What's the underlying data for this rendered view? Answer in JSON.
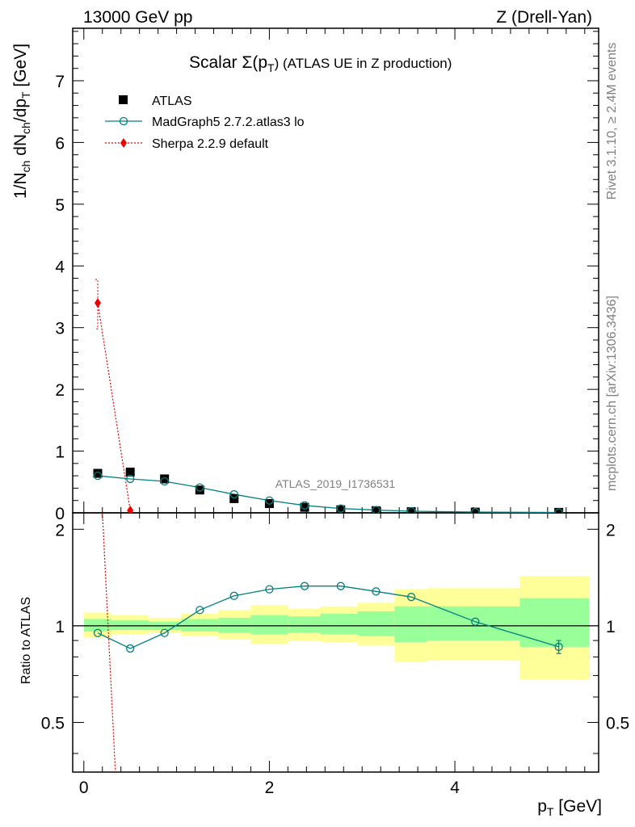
{
  "header": {
    "left": "13000 GeV pp",
    "right": "Z (Drell-Yan)"
  },
  "side": {
    "rivet": "Rivet 3.1.10, ≥ 2.4M events",
    "mcplots": "mcplots.cern.ch [arXiv:1306.3436]"
  },
  "watermark": "ATLAS_2019_I1736531",
  "title": {
    "main": "Scalar Σ(p",
    "sub": "T",
    "tail": ") (ATLAS UE in Z production)"
  },
  "axes": {
    "ylabel_top": "1/N_ch dN_ch/dp_T [GeV]",
    "ylabel_bottom": "Ratio to ATLAS",
    "xlabel": "p_T [GeV]"
  },
  "legend": [
    {
      "key": "atlas",
      "label": "ATLAS"
    },
    {
      "key": "madgraph",
      "label": "MadGraph5 2.7.2.atlas3 lo"
    },
    {
      "key": "sherpa",
      "label": "Sherpa 2.2.9 default"
    }
  ],
  "colors": {
    "madgraph": "#008080",
    "sherpa": "#ee0000",
    "band_inner": "#99ff99",
    "band_outer": "#ffff99"
  },
  "chart_data": [
    {
      "type": "scatter",
      "title": "Scalar Σ(p_T) (ATLAS UE in Z production)",
      "xlabel": "p_T [GeV]",
      "ylabel": "1/N_ch dN_ch/dp_T [GeV]",
      "xlim": [
        -0.12,
        5.55
      ],
      "ylim": [
        0,
        7.85
      ],
      "xticks": [
        0,
        2,
        4
      ],
      "yticks": [
        0,
        1,
        2,
        3,
        4,
        5,
        6,
        7
      ],
      "series": [
        {
          "name": "ATLAS",
          "x": [
            0.15,
            0.5,
            0.87,
            1.25,
            1.62,
            2.0,
            2.38,
            2.77,
            3.15,
            3.53,
            4.22,
            5.12
          ],
          "y": [
            0.64,
            0.66,
            0.55,
            0.37,
            0.23,
            0.15,
            0.09,
            0.05,
            0.035,
            0.02,
            0.012,
            0.008
          ]
        },
        {
          "name": "MadGraph5 2.7.2.atlas3 lo",
          "x": [
            0.15,
            0.5,
            0.87,
            1.25,
            1.62,
            2.0,
            2.38,
            2.77,
            3.15,
            3.53,
            4.22,
            5.12
          ],
          "y": [
            0.6,
            0.55,
            0.51,
            0.41,
            0.3,
            0.2,
            0.12,
            0.07,
            0.045,
            0.026,
            0.012,
            0.007
          ]
        },
        {
          "name": "Sherpa 2.2.9 default",
          "x": [
            0.15,
            0.5
          ],
          "y": [
            3.4,
            0.04
          ],
          "yerr_lo": [
            0.42,
            0.0
          ],
          "yerr_hi": [
            0.38,
            0.0
          ]
        }
      ]
    },
    {
      "type": "line",
      "ylabel": "Ratio to ATLAS",
      "xlabel": "p_T [GeV]",
      "xlim": [
        -0.12,
        5.55
      ],
      "ylim": [
        0.35,
        2.25
      ],
      "yscale": "log",
      "yticks": [
        0.5,
        1,
        2
      ],
      "reference": 1.0,
      "bands": {
        "edges": [
          0.0,
          0.3,
          0.7,
          1.05,
          1.45,
          1.8,
          2.2,
          2.55,
          2.95,
          3.35,
          3.7,
          4.7,
          5.45
        ],
        "inner_lo": [
          0.96,
          0.97,
          0.97,
          0.96,
          0.95,
          0.94,
          0.95,
          0.94,
          0.93,
          0.89,
          0.9,
          0.86
        ],
        "inner_hi": [
          1.05,
          1.04,
          1.03,
          1.05,
          1.06,
          1.08,
          1.07,
          1.09,
          1.11,
          1.15,
          1.15,
          1.22
        ],
        "outer_lo": [
          0.92,
          0.94,
          0.95,
          0.93,
          0.91,
          0.88,
          0.9,
          0.89,
          0.87,
          0.77,
          0.78,
          0.68
        ],
        "outer_hi": [
          1.1,
          1.08,
          1.06,
          1.09,
          1.12,
          1.16,
          1.13,
          1.15,
          1.18,
          1.3,
          1.31,
          1.43
        ]
      },
      "series": [
        {
          "name": "MadGraph5 2.7.2.atlas3 lo",
          "x": [
            0.15,
            0.5,
            0.87,
            1.25,
            1.62,
            2.0,
            2.38,
            2.77,
            3.15,
            3.53,
            4.22,
            5.12
          ],
          "y": [
            0.95,
            0.85,
            0.95,
            1.12,
            1.24,
            1.3,
            1.33,
            1.33,
            1.28,
            1.23,
            1.03,
            0.86
          ],
          "yerr_last": 0.04
        },
        {
          "name": "Sherpa 2.2.9 default",
          "x": [
            0.2,
            0.34
          ],
          "y": [
            2.25,
            0.35
          ]
        }
      ]
    }
  ]
}
